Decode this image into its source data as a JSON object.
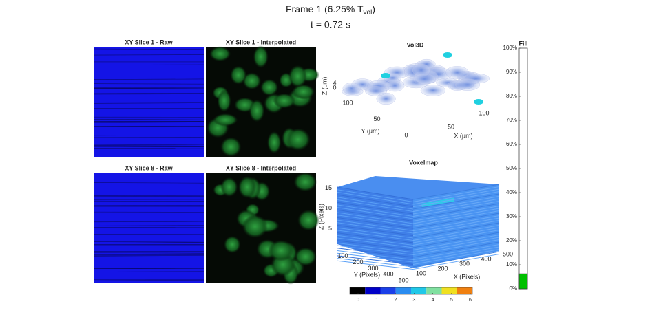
{
  "header": {
    "title": "Frame 1 (6.25% T",
    "title_subscript": "vol",
    "title_close": ")",
    "subtitle": "t = 0.72 s"
  },
  "slices": [
    {
      "title": "XY Slice 1 - Raw"
    },
    {
      "title": "XY Slice 1 - Interpolated"
    },
    {
      "title": "XY Slice 8 - Raw"
    },
    {
      "title": "XY Slice 8 - Interpolated"
    }
  ],
  "vol3d": {
    "title": "Vol3D",
    "xlabel": "X (μm)",
    "ylabel": "Y (μm)",
    "zlabel": "Z (μm)",
    "xticks": [
      50,
      100
    ],
    "yticks": [
      0,
      50,
      100
    ],
    "zticks": [
      0,
      4
    ]
  },
  "voxelmap": {
    "title": "Voxelmap",
    "xlabel": "X (Pixels)",
    "ylabel": "Y (Pixels)",
    "zlabel": "Z (Pixels)",
    "xticks": [
      100,
      200,
      300,
      400,
      500
    ],
    "yticks": [
      100,
      200,
      300,
      400,
      500
    ],
    "zticks": [
      5,
      10,
      15
    ]
  },
  "colorbar": {
    "clim": [
      0,
      6
    ],
    "ticks": [
      0,
      1,
      2,
      3,
      4,
      5,
      6
    ]
  },
  "fill": {
    "title": "Fill",
    "value": 6.25,
    "color": "#00c000",
    "ylim": [
      0,
      100
    ],
    "yticks": [
      {
        "value": 0,
        "label": "0%"
      },
      {
        "value": 10,
        "label": "10%"
      },
      {
        "value": 20,
        "label": "20%"
      },
      {
        "value": 30,
        "label": "30%"
      },
      {
        "value": 40,
        "label": "40%"
      },
      {
        "value": 50,
        "label": "50%"
      },
      {
        "value": 60,
        "label": "60%"
      },
      {
        "value": 70,
        "label": "70%"
      },
      {
        "value": 80,
        "label": "80%"
      },
      {
        "value": 90,
        "label": "90%"
      },
      {
        "value": 100,
        "label": "100%"
      }
    ]
  }
}
